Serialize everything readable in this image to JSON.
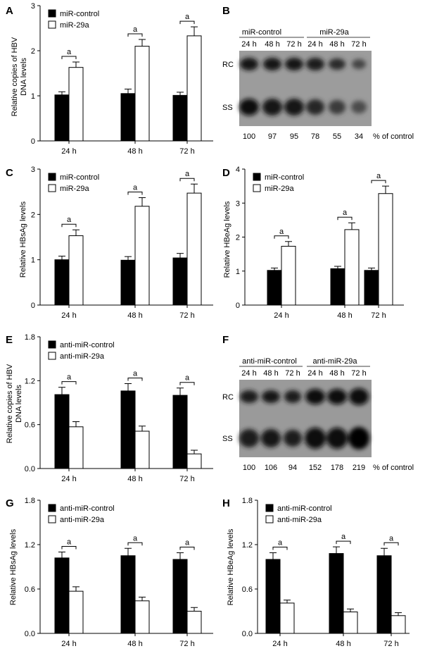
{
  "figure": {
    "panels": [
      {
        "letter": "A",
        "ylabel": [
          "Relative copies of HBV",
          "DNA levels"
        ]
      },
      {
        "letter": "B",
        "group_labels": [
          "miR-control",
          "miR-29a"
        ],
        "lane_labels": [
          "24 h",
          "48 h",
          "72 h",
          "24 h",
          "48 h",
          "72 h"
        ],
        "band_labels": [
          "RC",
          "SS"
        ],
        "percent_values": [
          "100",
          "97",
          "95",
          "78",
          "55",
          "34"
        ],
        "percent_label": "% of control"
      },
      {
        "letter": "C",
        "ylabel": [
          "Relative HBsAg levels"
        ]
      },
      {
        "letter": "D",
        "ylabel": [
          "Relative HBeAg levels"
        ]
      },
      {
        "letter": "E",
        "ylabel": [
          "Relative copies of HBV",
          "DNA levels"
        ]
      },
      {
        "letter": "F",
        "group_labels": [
          "anti-miR-control",
          "anti-miR-29a"
        ],
        "lane_labels": [
          "24 h",
          "48 h",
          "72 h",
          "24 h",
          "48 h",
          "72 h"
        ],
        "band_labels": [
          "RC",
          "SS"
        ],
        "percent_values": [
          "100",
          "106",
          "94",
          "152",
          "178",
          "219"
        ],
        "percent_label": "% of control"
      },
      {
        "letter": "G",
        "ylabel": [
          "Relative HBsAg levels"
        ]
      },
      {
        "letter": "H",
        "ylabel": [
          "Relative HBeAg levels"
        ]
      }
    ]
  },
  "chart_data": [
    {
      "panel": "A",
      "type": "bar",
      "categories": [
        "24 h",
        "48 h",
        "72 h"
      ],
      "series": [
        {
          "name": "miR-control",
          "fill": "#000000",
          "values": [
            1.02,
            1.05,
            1.01
          ],
          "errors": [
            0.07,
            0.1,
            0.07
          ]
        },
        {
          "name": "miR-29a",
          "fill": "#ffffff",
          "values": [
            1.63,
            2.1,
            2.33
          ],
          "errors": [
            0.12,
            0.15,
            0.2
          ]
        }
      ],
      "ylim": [
        0,
        3
      ],
      "yticks": [
        0,
        1,
        2,
        3
      ],
      "ytick_labels": [
        "0",
        "1",
        "2",
        "3"
      ],
      "significance": "a",
      "legend": "top-left"
    },
    {
      "panel": "C",
      "type": "bar",
      "categories": [
        "24 h",
        "48 h",
        "72 h"
      ],
      "series": [
        {
          "name": "miR-control",
          "fill": "#000000",
          "values": [
            1.0,
            0.99,
            1.04
          ],
          "errors": [
            0.08,
            0.08,
            0.1
          ]
        },
        {
          "name": "miR-29a",
          "fill": "#ffffff",
          "values": [
            1.53,
            2.18,
            2.47
          ],
          "errors": [
            0.13,
            0.19,
            0.2
          ]
        }
      ],
      "ylim": [
        0,
        3
      ],
      "yticks": [
        0,
        1,
        2,
        3
      ],
      "ytick_labels": [
        "0",
        "1",
        "2",
        "3"
      ],
      "significance": "a",
      "legend": "top-left"
    },
    {
      "panel": "D",
      "type": "bar",
      "categories": [
        "24 h",
        "48 h",
        "72 h"
      ],
      "series": [
        {
          "name": "miR-control",
          "fill": "#000000",
          "values": [
            1.02,
            1.07,
            1.02
          ],
          "errors": [
            0.07,
            0.07,
            0.07
          ]
        },
        {
          "name": "miR-29a",
          "fill": "#ffffff",
          "values": [
            1.73,
            2.22,
            3.28
          ],
          "errors": [
            0.14,
            0.2,
            0.22
          ]
        }
      ],
      "ylim": [
        0,
        4
      ],
      "yticks": [
        0,
        1,
        2,
        3,
        4
      ],
      "ytick_labels": [
        "0",
        "1",
        "2",
        "3",
        "4"
      ],
      "significance": "a",
      "legend": "top-left"
    },
    {
      "panel": "E",
      "type": "bar",
      "categories": [
        "24 h",
        "48 h",
        "72 h"
      ],
      "series": [
        {
          "name": "anti-miR-control",
          "fill": "#000000",
          "values": [
            1.01,
            1.06,
            1.0
          ],
          "errors": [
            0.1,
            0.1,
            0.1
          ]
        },
        {
          "name": "anti-miR-29a",
          "fill": "#ffffff",
          "values": [
            0.57,
            0.51,
            0.2
          ],
          "errors": [
            0.07,
            0.07,
            0.05
          ]
        }
      ],
      "ylim": [
        0,
        1.8
      ],
      "yticks": [
        0,
        0.6,
        1.2,
        1.8
      ],
      "ytick_labels": [
        "0.0",
        "0.6",
        "1.2",
        "1.8"
      ],
      "significance": "a",
      "legend": "top-left"
    },
    {
      "panel": "G",
      "type": "bar",
      "categories": [
        "24 h",
        "48 h",
        "72 h"
      ],
      "series": [
        {
          "name": "anti-miR-control",
          "fill": "#000000",
          "values": [
            1.02,
            1.05,
            1.0
          ],
          "errors": [
            0.08,
            0.1,
            0.09
          ]
        },
        {
          "name": "anti-miR-29a",
          "fill": "#ffffff",
          "values": [
            0.57,
            0.44,
            0.3
          ],
          "errors": [
            0.06,
            0.05,
            0.05
          ]
        }
      ],
      "ylim": [
        0,
        1.8
      ],
      "yticks": [
        0,
        0.6,
        1.2,
        1.8
      ],
      "ytick_labels": [
        "0.0",
        "0.6",
        "1.2",
        "1.8"
      ],
      "significance": "a",
      "legend": "top-left"
    },
    {
      "panel": "H",
      "type": "bar",
      "categories": [
        "24 h",
        "48 h",
        "72 h"
      ],
      "series": [
        {
          "name": "anti-miR-control",
          "fill": "#000000",
          "values": [
            1.0,
            1.08,
            1.05
          ],
          "errors": [
            0.09,
            0.09,
            0.1
          ]
        },
        {
          "name": "anti-miR-29a",
          "fill": "#ffffff",
          "values": [
            0.41,
            0.29,
            0.24
          ],
          "errors": [
            0.04,
            0.04,
            0.04
          ]
        }
      ],
      "ylim": [
        0,
        1.8
      ],
      "yticks": [
        0,
        0.6,
        1.2,
        1.8
      ],
      "ytick_labels": [
        "0.0",
        "0.6",
        "1.2",
        "1.8"
      ],
      "significance": "a",
      "legend": "top-left"
    }
  ]
}
